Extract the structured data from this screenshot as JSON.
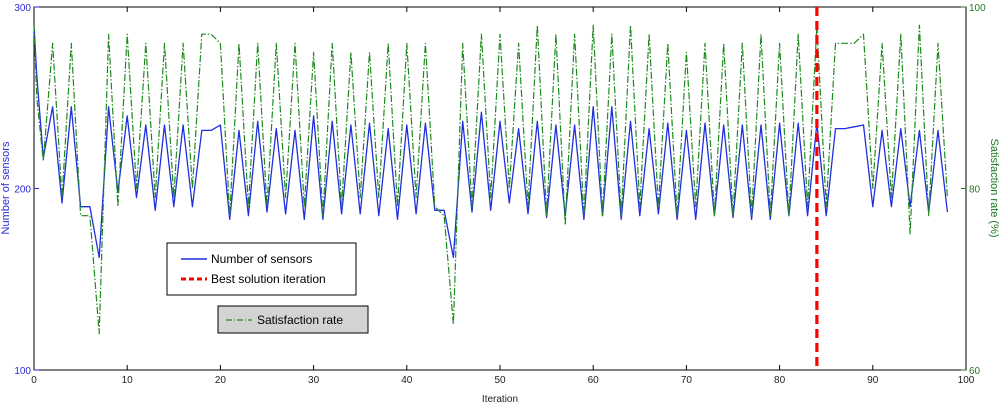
{
  "chart_data": {
    "type": "line",
    "xlabel": "Iteration",
    "ylabel_left": "Number of sensors",
    "ylabel_right": "Satisfaction rate (%)",
    "xlim": [
      0,
      100
    ],
    "ylim_left": [
      100,
      300
    ],
    "ylim_right": [
      60,
      100
    ],
    "x_ticks": [
      "0",
      "10",
      "20",
      "30",
      "40",
      "50",
      "60",
      "70",
      "80",
      "90",
      "100"
    ],
    "y_ticks_left": [
      "100",
      "200",
      "300"
    ],
    "y_ticks_right": [
      "60",
      "80",
      "100"
    ],
    "grid": false,
    "best_iteration": 84,
    "legend": {
      "placement": "lower-left",
      "sensors": "Number of sensors",
      "best": "Best solution iteration",
      "satisfaction": "Satisfaction rate"
    },
    "colors": {
      "sensors": "#1f2fe0",
      "satisfaction": "#1e8a1e",
      "best": "#ff0000",
      "left_axis": "#2a2ad6",
      "right_axis": "#1f7a1f"
    },
    "series": [
      {
        "key": "sensors",
        "name": "Number of sensors",
        "axis": "left",
        "x": [
          0,
          0.3,
          1,
          2,
          3,
          4,
          5,
          6,
          7,
          8,
          9,
          10,
          11,
          12,
          13,
          14,
          15,
          16,
          17,
          18,
          19,
          20,
          21,
          22,
          23,
          24,
          25,
          26,
          27,
          28,
          29,
          30,
          31,
          32,
          33,
          34,
          35,
          36,
          37,
          38,
          39,
          40,
          41,
          42,
          43,
          44,
          45,
          46,
          47,
          48,
          49,
          50,
          51,
          52,
          53,
          54,
          55,
          56,
          57,
          58,
          59,
          60,
          61,
          62,
          63,
          64,
          65,
          66,
          67,
          68,
          69,
          70,
          71,
          72,
          73,
          74,
          75,
          76,
          77,
          78,
          79,
          80,
          81,
          82,
          83,
          84,
          85,
          86,
          87,
          88,
          89,
          90,
          91,
          92,
          93,
          94,
          95,
          96,
          97,
          98
        ],
        "y": [
          290,
          262,
          217,
          245,
          192,
          245,
          190,
          190,
          162,
          245,
          198,
          240,
          195,
          235,
          188,
          235,
          190,
          235,
          190,
          232,
          232,
          235,
          183,
          232,
          185,
          237,
          187,
          233,
          186,
          232,
          183,
          240,
          183,
          237,
          186,
          235,
          186,
          236,
          185,
          233,
          183,
          235,
          186,
          236,
          188,
          188,
          162,
          237,
          187,
          242,
          188,
          237,
          192,
          233,
          186,
          237,
          184,
          235,
          185,
          235,
          183,
          245,
          185,
          245,
          183,
          237,
          185,
          233,
          186,
          236,
          183,
          232,
          183,
          236,
          185,
          235,
          184,
          235,
          183,
          235,
          183,
          236,
          185,
          236,
          185,
          236,
          185,
          233,
          233,
          234,
          235,
          190,
          232,
          190,
          233,
          190,
          232,
          187,
          232,
          187
        ]
      },
      {
        "key": "satisfaction",
        "name": "Satisfaction rate",
        "axis": "right",
        "x": [
          0,
          0.3,
          1,
          2,
          3,
          4,
          5,
          6,
          7,
          8,
          9,
          10,
          11,
          12,
          13,
          14,
          15,
          16,
          17,
          18,
          19,
          20,
          21,
          22,
          23,
          24,
          25,
          26,
          27,
          28,
          29,
          30,
          31,
          32,
          33,
          34,
          35,
          36,
          37,
          38,
          39,
          40,
          41,
          42,
          43,
          44,
          45,
          46,
          47,
          48,
          49,
          50,
          51,
          52,
          53,
          54,
          55,
          56,
          57,
          58,
          59,
          60,
          61,
          62,
          63,
          64,
          65,
          66,
          67,
          68,
          69,
          70,
          71,
          72,
          73,
          74,
          75,
          76,
          77,
          78,
          79,
          80,
          81,
          82,
          83,
          84,
          85,
          86,
          87,
          88,
          89,
          90,
          91,
          92,
          93,
          94,
          95,
          96,
          97,
          98
        ],
        "y": [
          98,
          90,
          83,
          96,
          79,
          96,
          77,
          77,
          64,
          97,
          78,
          97,
          80,
          96,
          79,
          96,
          79,
          96,
          80,
          97,
          97,
          96,
          77,
          96,
          78,
          96,
          78,
          96,
          79,
          96,
          78,
          95,
          77,
          96,
          78,
          95,
          79,
          95,
          79,
          96,
          78,
          96,
          79,
          96,
          78,
          77,
          65,
          96,
          78,
          97,
          79,
          97,
          80,
          96,
          78,
          98,
          77,
          97,
          76,
          97,
          77,
          98,
          77,
          97,
          77,
          98,
          78,
          97,
          78,
          96,
          77,
          95,
          78,
          96,
          77,
          96,
          77,
          96,
          77,
          97,
          77,
          96,
          77,
          97,
          78,
          98,
          78,
          96,
          96,
          96,
          97,
          80,
          96,
          79,
          97,
          75,
          98,
          77,
          96,
          79
        ]
      }
    ]
  }
}
